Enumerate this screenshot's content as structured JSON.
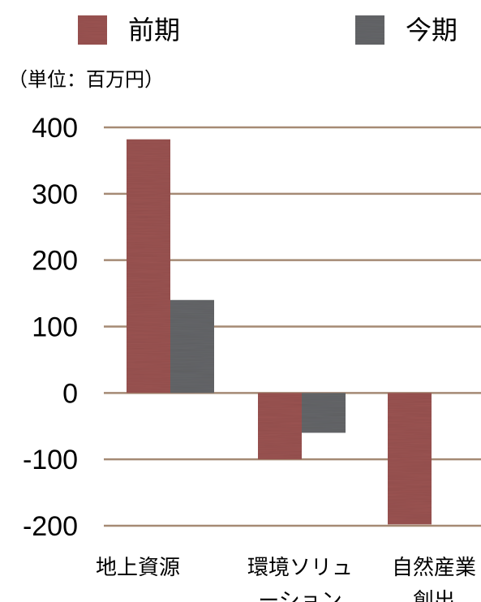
{
  "chart_data": {
    "type": "bar",
    "unit_label": "（単位：百万円）",
    "categories": [
      [
        "地上資源"
      ],
      [
        "環境ソリュ",
        "ーション"
      ],
      [
        "自然産業",
        "創出"
      ]
    ],
    "series": [
      {
        "name": "前期",
        "color": "#9c5552",
        "values": [
          382,
          -100,
          -198
        ]
      },
      {
        "name": "今期",
        "color": "#66676a",
        "values": [
          140,
          -60,
          null
        ]
      }
    ],
    "yticks": [
      400,
      300,
      200,
      100,
      0,
      -100,
      -200
    ],
    "ylim": [
      -200,
      400
    ],
    "grid": true,
    "gridline_color": "#a58a74",
    "legend_position": "top"
  }
}
